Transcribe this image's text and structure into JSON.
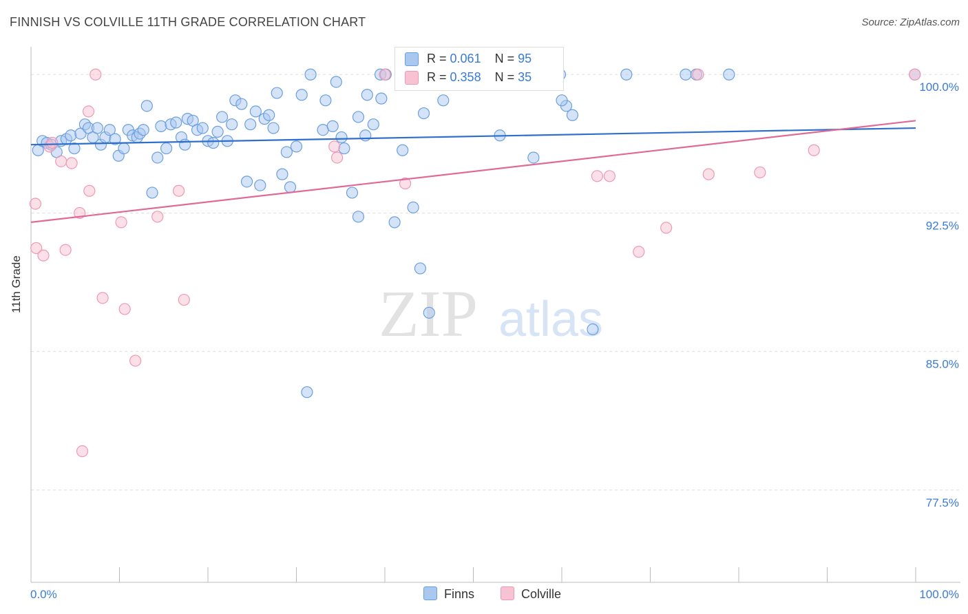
{
  "title": "FINNISH VS COLVILLE 11TH GRADE CORRELATION CHART",
  "source": "Source: ZipAtlas.com",
  "watermark": {
    "zip": "ZIP",
    "atlas": "atlas"
  },
  "legend": {
    "finns": {
      "r_label": "R =",
      "r_value": "0.061",
      "n_label": "N =",
      "n_value": "95"
    },
    "colville": {
      "r_label": "R =",
      "r_value": "0.358",
      "n_label": "N =",
      "n_value": "35"
    }
  },
  "bottom_legend": {
    "finns": "Finns",
    "colville": "Colville"
  },
  "colors": {
    "finns_fill": "#aac8ef",
    "finns_stroke": "#6a9fde",
    "finns_line": "#2f6fcc",
    "colville_fill": "#f7c2d2",
    "colville_stroke": "#ee98b5",
    "colville_line": "#e06a95",
    "tick_text": "#3a7bd5",
    "grid": "#dddddd"
  },
  "chart_data": {
    "type": "scatter",
    "title": "FINNISH VS COLVILLE 11TH GRADE CORRELATION CHART",
    "xlabel": "",
    "ylabel": "11th Grade",
    "xlim": [
      0,
      100
    ],
    "ylim": [
      72.5,
      101.5
    ],
    "x_tick_labels": [
      "0.0%",
      "100.0%"
    ],
    "y_ticks": [
      77.5,
      85.0,
      92.5,
      100.0
    ],
    "y_tick_labels": [
      "77.5%",
      "85.0%",
      "92.5%",
      "100.0%"
    ],
    "grid": true,
    "series": [
      {
        "name": "Finns",
        "trend": {
          "x": [
            0,
            100
          ],
          "y": [
            96.2,
            97.1
          ]
        },
        "points": [
          [
            0.8,
            95.9
          ],
          [
            1.3,
            96.4
          ],
          [
            1.8,
            96.3
          ],
          [
            2.3,
            96.2
          ],
          [
            2.9,
            95.8
          ],
          [
            3.4,
            96.4
          ],
          [
            4.0,
            96.5
          ],
          [
            4.5,
            96.7
          ],
          [
            4.9,
            96.0
          ],
          [
            5.6,
            96.8
          ],
          [
            6.1,
            97.3
          ],
          [
            6.5,
            97.1
          ],
          [
            7.0,
            96.6
          ],
          [
            7.5,
            97.1
          ],
          [
            7.9,
            96.2
          ],
          [
            8.4,
            96.6
          ],
          [
            8.9,
            97.0
          ],
          [
            9.5,
            96.5
          ],
          [
            9.9,
            95.6
          ],
          [
            10.5,
            96.0
          ],
          [
            11.0,
            97.0
          ],
          [
            11.5,
            96.7
          ],
          [
            12.0,
            96.6
          ],
          [
            12.3,
            96.8
          ],
          [
            12.7,
            97.0
          ],
          [
            13.1,
            98.3
          ],
          [
            13.7,
            93.6
          ],
          [
            14.3,
            95.5
          ],
          [
            14.7,
            97.2
          ],
          [
            15.3,
            96.0
          ],
          [
            15.8,
            97.3
          ],
          [
            16.4,
            97.4
          ],
          [
            17.0,
            96.6
          ],
          [
            17.4,
            96.2
          ],
          [
            17.7,
            97.6
          ],
          [
            18.3,
            97.5
          ],
          [
            18.8,
            97.0
          ],
          [
            19.4,
            97.1
          ],
          [
            20.0,
            96.4
          ],
          [
            20.6,
            96.3
          ],
          [
            21.1,
            96.9
          ],
          [
            21.6,
            97.7
          ],
          [
            22.2,
            96.4
          ],
          [
            22.7,
            97.3
          ],
          [
            23.1,
            98.6
          ],
          [
            23.8,
            98.4
          ],
          [
            24.4,
            94.2
          ],
          [
            24.8,
            97.3
          ],
          [
            25.4,
            98.0
          ],
          [
            25.9,
            94.0
          ],
          [
            26.4,
            97.6
          ],
          [
            26.9,
            97.8
          ],
          [
            27.4,
            97.1
          ],
          [
            27.8,
            99.0
          ],
          [
            28.4,
            94.6
          ],
          [
            28.9,
            95.8
          ],
          [
            29.3,
            93.9
          ],
          [
            30.0,
            96.1
          ],
          [
            30.6,
            98.9
          ],
          [
            31.6,
            100.0
          ],
          [
            31.2,
            82.8
          ],
          [
            33.0,
            97.0
          ],
          [
            33.3,
            98.6
          ],
          [
            34.1,
            97.2
          ],
          [
            34.5,
            99.6
          ],
          [
            35.1,
            96.6
          ],
          [
            35.4,
            96.0
          ],
          [
            36.3,
            93.6
          ],
          [
            37.0,
            97.7
          ],
          [
            37.0,
            92.3
          ],
          [
            37.8,
            96.7
          ],
          [
            38.0,
            98.9
          ],
          [
            38.7,
            97.3
          ],
          [
            39.5,
            100.0
          ],
          [
            39.6,
            98.7
          ],
          [
            40.1,
            100.0
          ],
          [
            41.1,
            92.0
          ],
          [
            42.0,
            95.9
          ],
          [
            43.2,
            92.8
          ],
          [
            44.0,
            89.5
          ],
          [
            44.4,
            97.9
          ],
          [
            45.0,
            87.1
          ],
          [
            46.6,
            98.6
          ],
          [
            53.0,
            96.7
          ],
          [
            56.8,
            95.5
          ],
          [
            59.8,
            100.0
          ],
          [
            60.5,
            98.3
          ],
          [
            60.0,
            98.6
          ],
          [
            61.2,
            97.8
          ],
          [
            63.5,
            86.2
          ],
          [
            67.3,
            100.0
          ],
          [
            74.0,
            100.0
          ],
          [
            78.9,
            100.0
          ],
          [
            75.2,
            100.0
          ],
          [
            99.9,
            100.0
          ]
        ]
      },
      {
        "name": "Colville",
        "trend": {
          "x": [
            0,
            100
          ],
          "y": [
            92.0,
            97.5
          ]
        },
        "points": [
          [
            0.5,
            93.0
          ],
          [
            0.6,
            90.6
          ],
          [
            1.4,
            90.2
          ],
          [
            2.1,
            96.1
          ],
          [
            2.4,
            96.3
          ],
          [
            3.4,
            95.3
          ],
          [
            3.9,
            90.5
          ],
          [
            4.6,
            95.2
          ],
          [
            5.5,
            92.5
          ],
          [
            5.8,
            79.6
          ],
          [
            6.5,
            98.0
          ],
          [
            6.6,
            93.7
          ],
          [
            7.3,
            100.0
          ],
          [
            8.1,
            87.9
          ],
          [
            10.2,
            92.0
          ],
          [
            10.6,
            87.3
          ],
          [
            11.8,
            84.5
          ],
          [
            14.3,
            92.3
          ],
          [
            16.7,
            93.7
          ],
          [
            17.3,
            87.8
          ],
          [
            40.0,
            100.0
          ],
          [
            34.6,
            95.5
          ],
          [
            42.3,
            94.1
          ],
          [
            46.2,
            100.0
          ],
          [
            34.3,
            96.1
          ],
          [
            53.1,
            100.0
          ],
          [
            64.0,
            94.5
          ],
          [
            65.4,
            94.5
          ],
          [
            68.7,
            90.4
          ],
          [
            71.8,
            91.7
          ],
          [
            75.4,
            100.0
          ],
          [
            76.6,
            94.6
          ],
          [
            82.4,
            94.7
          ],
          [
            88.5,
            95.9
          ],
          [
            99.9,
            100.0
          ]
        ]
      }
    ]
  }
}
